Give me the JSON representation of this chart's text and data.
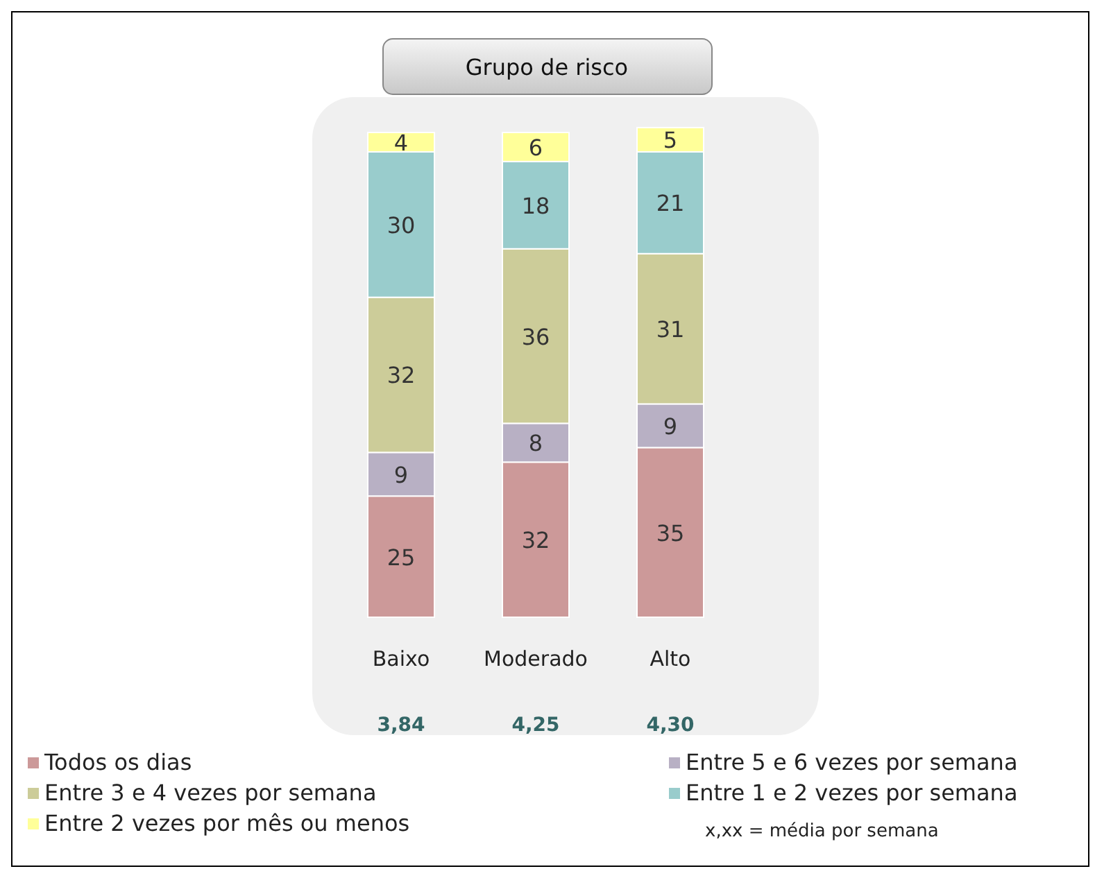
{
  "chart_data": {
    "type": "bar",
    "title": "Grupo de risco",
    "categories": [
      "Baixo",
      "Moderado",
      "Alto"
    ],
    "stacked": true,
    "data_labels": true,
    "legend": "bottom",
    "series": [
      {
        "name": "Todos os dias",
        "color": "#cc9999",
        "values": [
          25,
          32,
          35
        ]
      },
      {
        "name": "Entre 5 e 6 vezes por semana",
        "color": "#b8b0c4",
        "values": [
          9,
          8,
          9
        ]
      },
      {
        "name": "Entre 3 e 4 vezes por semana",
        "color": "#cccc99",
        "values": [
          32,
          36,
          31
        ]
      },
      {
        "name": "Entre 1 e 2 vezes por semana",
        "color": "#99cccc",
        "values": [
          30,
          18,
          21
        ]
      },
      {
        "name": "Entre 2 vezes por mês ou menos",
        "color": "#ffff99",
        "values": [
          4,
          6,
          5
        ]
      }
    ],
    "annotations": [
      "3,84",
      "4,25",
      "4,30",
      "x,xx = média por semana"
    ]
  }
}
